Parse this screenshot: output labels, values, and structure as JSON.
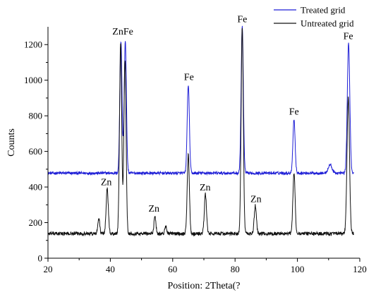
{
  "chart_data": {
    "type": "line",
    "title": "",
    "xlabel": "Position: 2Theta(?",
    "ylabel": "Counts",
    "xlim": [
      20,
      120
    ],
    "ylim": [
      0,
      1300
    ],
    "x_ticks": [
      20,
      40,
      60,
      80,
      100,
      120
    ],
    "y_ticks": [
      0,
      200,
      400,
      600,
      800,
      1000,
      1200
    ],
    "grid": false,
    "legend_position": "top-right",
    "series": [
      {
        "name": "Treated grid",
        "color": "#1f1fd6",
        "baseline": 478,
        "noise": 8,
        "x_range": [
          20,
          118
        ],
        "peaks": [
          {
            "x": 43.4,
            "y": 1220,
            "w": 0.35
          },
          {
            "x": 44.8,
            "y": 1220,
            "w": 0.35
          },
          {
            "x": 65.0,
            "y": 975,
            "w": 0.35
          },
          {
            "x": 82.3,
            "y": 1300,
            "w": 0.35
          },
          {
            "x": 98.9,
            "y": 780,
            "w": 0.35
          },
          {
            "x": 116.4,
            "y": 1205,
            "w": 0.4
          },
          {
            "x": 110.5,
            "y": 525,
            "w": 0.6
          }
        ]
      },
      {
        "name": "Untreated grid",
        "color": "#111111",
        "baseline": 138,
        "noise": 10,
        "x_range": [
          20,
          118
        ],
        "peaks": [
          {
            "x": 36.3,
            "y": 225,
            "w": 0.3
          },
          {
            "x": 39.0,
            "y": 390,
            "w": 0.35
          },
          {
            "x": 43.3,
            "y": 1210,
            "w": 0.35
          },
          {
            "x": 44.7,
            "y": 1120,
            "w": 0.35
          },
          {
            "x": 54.3,
            "y": 240,
            "w": 0.3
          },
          {
            "x": 57.8,
            "y": 180,
            "w": 0.3
          },
          {
            "x": 65.0,
            "y": 580,
            "w": 0.35
          },
          {
            "x": 70.5,
            "y": 360,
            "w": 0.35
          },
          {
            "x": 82.3,
            "y": 1290,
            "w": 0.35
          },
          {
            "x": 86.5,
            "y": 295,
            "w": 0.35
          },
          {
            "x": 98.9,
            "y": 480,
            "w": 0.35
          },
          {
            "x": 116.3,
            "y": 900,
            "w": 0.4
          }
        ]
      }
    ],
    "annotations": [
      {
        "text": "ZnFe",
        "x": 44.0,
        "y": 1240
      },
      {
        "text": "Fe",
        "x": 82.3,
        "y": 1310
      },
      {
        "text": "Fe",
        "x": 65.2,
        "y": 985
      },
      {
        "text": "Fe",
        "x": 98.9,
        "y": 790
      },
      {
        "text": "Fe",
        "x": 116.3,
        "y": 1215
      },
      {
        "text": "Zn",
        "x": 38.7,
        "y": 395
      },
      {
        "text": "Zn",
        "x": 54.0,
        "y": 245
      },
      {
        "text": "Zn",
        "x": 70.4,
        "y": 365
      },
      {
        "text": "Zn",
        "x": 86.7,
        "y": 300
      }
    ]
  }
}
